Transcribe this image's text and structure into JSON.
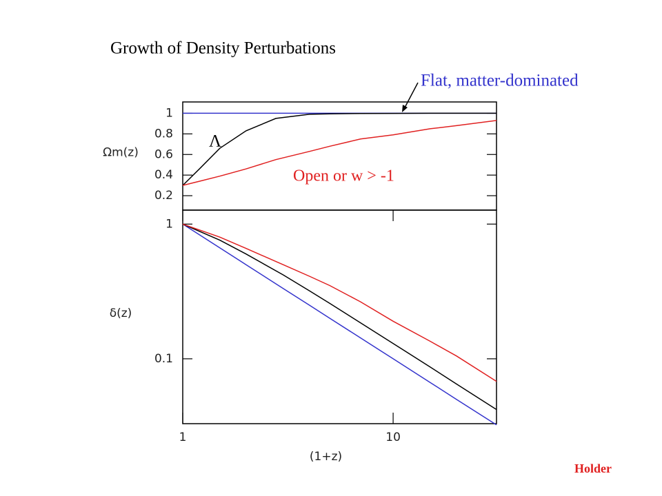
{
  "title": "Growth of Density Perturbations",
  "credit": "Holder",
  "chart_data": [
    {
      "type": "line",
      "y_label": "Ωm(z)",
      "x": [
        1,
        1.2,
        1.5,
        2,
        2.77,
        4,
        5,
        7,
        10,
        15,
        20,
        31
      ],
      "xlim": [
        1,
        31
      ],
      "xscale": "log",
      "ylim": [
        0.06,
        1.11
      ],
      "yticks": [
        0.2,
        0.4,
        0.6,
        0.8,
        1
      ],
      "series": [
        {
          "name": "Flat, matter-dominated",
          "color": "#3333cc",
          "values": [
            1,
            1,
            1,
            1,
            1,
            1,
            1,
            1,
            1,
            1,
            1,
            1
          ]
        },
        {
          "name": "Λ",
          "color": "#000000",
          "values": [
            0.3,
            0.46,
            0.66,
            0.83,
            0.95,
            0.99,
            0.995,
            0.998,
            0.999,
            1,
            1,
            1
          ]
        },
        {
          "name": "Open or w > -1",
          "color": "#e02020",
          "values": [
            0.3,
            0.34,
            0.39,
            0.46,
            0.55,
            0.63,
            0.68,
            0.75,
            0.79,
            0.85,
            0.88,
            0.93
          ]
        }
      ]
    },
    {
      "type": "line",
      "y_label": "δ(z)",
      "x_label": "(1+z)",
      "x": [
        1,
        1.5,
        2,
        3,
        4,
        5,
        7,
        10,
        15,
        20,
        31
      ],
      "xlim": [
        1,
        31
      ],
      "xscale": "log",
      "xticks": [
        1,
        10
      ],
      "ylim": [
        0.033,
        1.27
      ],
      "yscale": "log",
      "yticks": [
        0.1,
        1
      ],
      "series": [
        {
          "color": "#3333cc",
          "values": [
            1,
            0.667,
            0.5,
            0.333,
            0.25,
            0.2,
            0.143,
            0.1,
            0.0667,
            0.05,
            0.0323
          ]
        },
        {
          "color": "#000000",
          "values": [
            1,
            0.76,
            0.6,
            0.42,
            0.32,
            0.258,
            0.185,
            0.13,
            0.087,
            0.065,
            0.042
          ]
        },
        {
          "color": "#e02020",
          "values": [
            1,
            0.8,
            0.66,
            0.5,
            0.41,
            0.35,
            0.265,
            0.19,
            0.135,
            0.105,
            0.068
          ]
        }
      ]
    }
  ]
}
